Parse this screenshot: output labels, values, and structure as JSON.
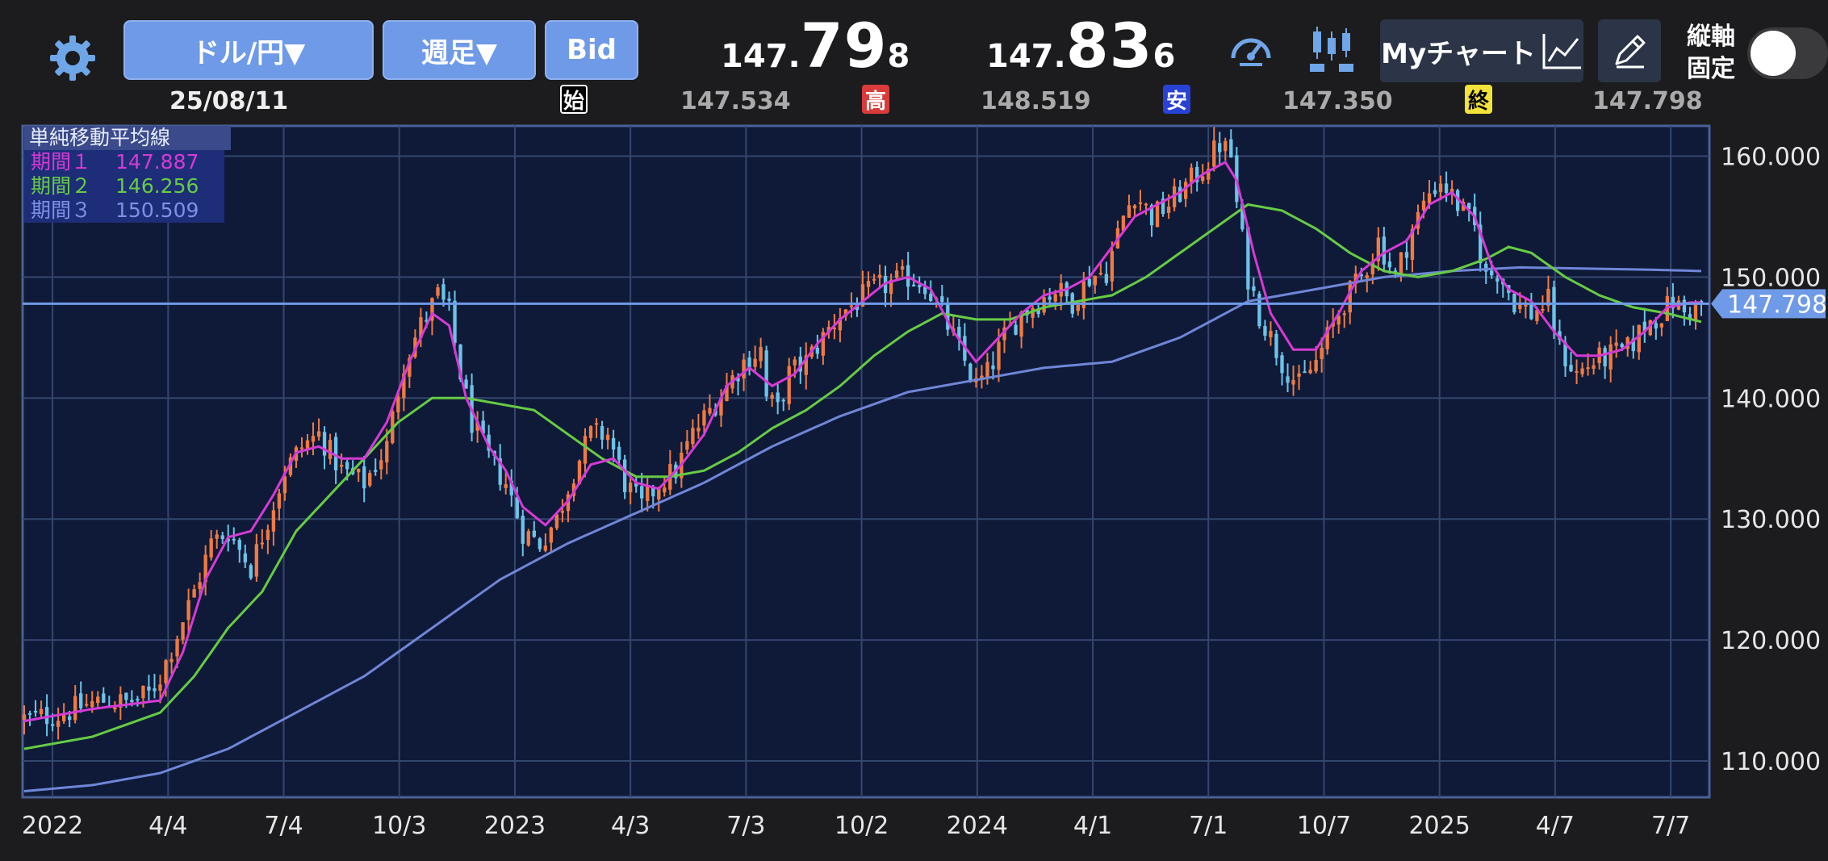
{
  "toolbar": {
    "pair": "ドル/円▼",
    "timeframe": "週足▼",
    "price_type": "Bid",
    "bid": {
      "small": "147.",
      "big": "79",
      "tail": "8"
    },
    "ask": {
      "small": "147.",
      "big": "83",
      "tail": "6"
    },
    "my_chart_label": "Myチャート",
    "lock_axis_label_1": "縦軸",
    "lock_axis_label_2": "固定"
  },
  "ohlc": {
    "date": "25/08/11",
    "open_tag": "始",
    "open": "147.534",
    "high_tag": "高",
    "high": "148.519",
    "low_tag": "安",
    "low": "147.350",
    "close_tag": "終",
    "close": "147.798"
  },
  "legend": {
    "title": "単純移動平均線",
    "p1_label": "期間１",
    "p1_value": "147.887",
    "p2_label": "期間２",
    "p2_value": "146.256",
    "p3_label": "期間３",
    "p3_value": "150.509"
  },
  "colors": {
    "bg": "#0f1a38",
    "grid": "#34466e",
    "up": "#f07a42",
    "down": "#6cc3e8",
    "ma1": "#d63ad6",
    "ma2": "#66cc44",
    "ma3": "#6f86d8",
    "accent": "#6f9ae8"
  },
  "chart_data": {
    "type": "candlestick",
    "y_axis_ticks": [
      "160.000",
      "150.000",
      "140.000",
      "130.000",
      "120.000",
      "110.000"
    ],
    "ylim": [
      107,
      162.5
    ],
    "x_axis_ticks": [
      "2022",
      "4/4",
      "7/4",
      "10/3",
      "2023",
      "4/3",
      "7/3",
      "10/2",
      "2024",
      "4/1",
      "7/1",
      "10/7",
      "2025",
      "4/7",
      "7/7"
    ],
    "current_price_label": "147.798",
    "current_price": 147.798,
    "series_keypoints": {
      "close_path": [
        [
          0,
          113.5
        ],
        [
          6,
          113.8
        ],
        [
          10,
          114.5
        ],
        [
          14,
          115.0
        ],
        [
          18,
          114.8
        ],
        [
          22,
          115.5
        ],
        [
          24,
          117
        ],
        [
          27,
          120.5
        ],
        [
          30,
          124
        ],
        [
          33,
          128
        ],
        [
          36,
          129
        ],
        [
          40,
          126
        ],
        [
          43,
          130
        ],
        [
          46,
          134
        ],
        [
          49,
          136
        ],
        [
          52,
          137
        ],
        [
          56,
          134
        ],
        [
          60,
          133
        ],
        [
          64,
          136
        ],
        [
          67,
          143
        ],
        [
          70,
          146
        ],
        [
          73,
          148.5
        ],
        [
          75,
          147
        ],
        [
          77,
          142
        ],
        [
          79,
          138
        ],
        [
          82,
          135
        ],
        [
          85,
          133
        ],
        [
          88,
          129
        ],
        [
          91,
          128
        ],
        [
          94,
          130
        ],
        [
          97,
          134
        ],
        [
          100,
          137
        ],
        [
          103,
          137
        ],
        [
          106,
          133
        ],
        [
          109,
          131
        ],
        [
          112,
          133
        ],
        [
          115,
          134
        ],
        [
          118,
          137
        ],
        [
          121,
          139
        ],
        [
          124,
          141
        ],
        [
          127,
          143
        ],
        [
          130,
          144
        ],
        [
          131,
          140
        ],
        [
          133,
          139
        ],
        [
          135,
          142
        ],
        [
          138,
          143
        ],
        [
          141,
          145
        ],
        [
          144,
          147
        ],
        [
          147,
          148
        ],
        [
          150,
          149
        ],
        [
          153,
          149.5
        ],
        [
          156,
          150
        ],
        [
          159,
          149.5
        ],
        [
          162,
          147
        ],
        [
          164,
          145
        ],
        [
          166,
          143
        ],
        [
          168,
          141
        ],
        [
          170,
          142
        ],
        [
          173,
          145
        ],
        [
          176,
          147
        ],
        [
          179,
          148
        ],
        [
          182,
          149
        ],
        [
          185,
          148
        ],
        [
          188,
          150
        ],
        [
          191,
          150.5
        ],
        [
          194,
          155
        ],
        [
          196,
          157
        ],
        [
          199,
          155
        ],
        [
          202,
          156
        ],
        [
          205,
          157.5
        ],
        [
          208,
          159
        ],
        [
          211,
          161
        ],
        [
          213,
          160
        ],
        [
          214,
          156
        ],
        [
          216,
          150
        ],
        [
          218,
          147
        ],
        [
          220,
          145
        ],
        [
          222,
          143
        ],
        [
          225,
          141
        ],
        [
          228,
          143
        ],
        [
          230,
          145
        ],
        [
          233,
          148
        ],
        [
          236,
          150
        ],
        [
          239,
          153
        ],
        [
          242,
          150
        ],
        [
          245,
          154
        ],
        [
          248,
          157
        ],
        [
          250,
          158
        ],
        [
          253,
          156
        ],
        [
          256,
          154
        ],
        [
          258,
          150
        ],
        [
          260,
          150.5
        ],
        [
          263,
          148
        ],
        [
          266,
          147
        ],
        [
          269,
          148
        ],
        [
          271,
          144
        ],
        [
          274,
          142
        ],
        [
          277,
          143
        ],
        [
          280,
          143.5
        ],
        [
          283,
          144
        ],
        [
          286,
          146
        ],
        [
          289,
          147
        ],
        [
          291,
          148
        ],
        [
          293,
          147
        ],
        [
          296,
          147.8
        ]
      ],
      "ma1_path": [
        [
          0,
          113.3
        ],
        [
          12,
          114.3
        ],
        [
          24,
          115.0
        ],
        [
          28,
          119
        ],
        [
          32,
          125
        ],
        [
          36,
          128.5
        ],
        [
          40,
          129
        ],
        [
          44,
          132
        ],
        [
          48,
          135.5
        ],
        [
          52,
          136
        ],
        [
          56,
          135
        ],
        [
          60,
          135
        ],
        [
          64,
          138
        ],
        [
          68,
          143
        ],
        [
          72,
          147
        ],
        [
          75,
          146
        ],
        [
          78,
          140
        ],
        [
          82,
          136
        ],
        [
          85,
          134
        ],
        [
          88,
          131
        ],
        [
          92,
          129.5
        ],
        [
          96,
          131.5
        ],
        [
          100,
          134.5
        ],
        [
          104,
          135
        ],
        [
          108,
          133
        ],
        [
          112,
          132.5
        ],
        [
          116,
          134.5
        ],
        [
          120,
          137
        ],
        [
          124,
          141
        ],
        [
          128,
          142.5
        ],
        [
          132,
          141
        ],
        [
          136,
          142
        ],
        [
          140,
          144.5
        ],
        [
          144,
          146.5
        ],
        [
          148,
          148
        ],
        [
          152,
          149.5
        ],
        [
          156,
          150
        ],
        [
          160,
          149
        ],
        [
          164,
          145.5
        ],
        [
          168,
          143
        ],
        [
          172,
          145
        ],
        [
          176,
          147
        ],
        [
          180,
          148.5
        ],
        [
          184,
          149
        ],
        [
          188,
          150
        ],
        [
          192,
          152.5
        ],
        [
          196,
          155
        ],
        [
          200,
          156
        ],
        [
          204,
          157
        ],
        [
          208,
          158.5
        ],
        [
          212,
          159.5
        ],
        [
          214,
          158
        ],
        [
          217,
          152
        ],
        [
          220,
          147
        ],
        [
          224,
          144
        ],
        [
          228,
          144
        ],
        [
          232,
          147
        ],
        [
          236,
          150.5
        ],
        [
          240,
          152
        ],
        [
          244,
          153
        ],
        [
          248,
          156
        ],
        [
          252,
          157
        ],
        [
          256,
          155
        ],
        [
          259,
          151
        ],
        [
          262,
          149
        ],
        [
          266,
          148
        ],
        [
          270,
          145.5
        ],
        [
          274,
          143.5
        ],
        [
          278,
          143.5
        ],
        [
          282,
          144
        ],
        [
          286,
          145.5
        ],
        [
          290,
          147.5
        ],
        [
          294,
          147.9
        ],
        [
          296,
          147.9
        ]
      ],
      "ma2_path": [
        [
          0,
          111
        ],
        [
          12,
          112
        ],
        [
          24,
          114
        ],
        [
          30,
          117
        ],
        [
          36,
          121
        ],
        [
          42,
          124
        ],
        [
          48,
          129
        ],
        [
          54,
          132
        ],
        [
          60,
          135
        ],
        [
          66,
          138
        ],
        [
          72,
          140
        ],
        [
          78,
          140
        ],
        [
          84,
          139.5
        ],
        [
          90,
          139
        ],
        [
          96,
          137
        ],
        [
          102,
          135
        ],
        [
          108,
          133.5
        ],
        [
          114,
          133.5
        ],
        [
          120,
          134
        ],
        [
          126,
          135.5
        ],
        [
          132,
          137.5
        ],
        [
          138,
          139
        ],
        [
          144,
          141
        ],
        [
          150,
          143.5
        ],
        [
          156,
          145.5
        ],
        [
          162,
          147
        ],
        [
          168,
          146.5
        ],
        [
          174,
          146.5
        ],
        [
          180,
          147.5
        ],
        [
          186,
          148
        ],
        [
          192,
          148.5
        ],
        [
          198,
          150
        ],
        [
          204,
          152
        ],
        [
          210,
          154
        ],
        [
          216,
          156
        ],
        [
          222,
          155.5
        ],
        [
          228,
          154
        ],
        [
          234,
          152
        ],
        [
          240,
          150.5
        ],
        [
          246,
          150
        ],
        [
          252,
          150.5
        ],
        [
          258,
          151.5
        ],
        [
          262,
          152.5
        ],
        [
          266,
          152
        ],
        [
          272,
          150
        ],
        [
          278,
          148.5
        ],
        [
          284,
          147.5
        ],
        [
          290,
          147
        ],
        [
          296,
          146.3
        ]
      ],
      "ma3_path": [
        [
          0,
          107.5
        ],
        [
          12,
          108
        ],
        [
          24,
          109
        ],
        [
          36,
          111
        ],
        [
          48,
          114
        ],
        [
          60,
          117
        ],
        [
          72,
          121
        ],
        [
          84,
          125
        ],
        [
          96,
          128
        ],
        [
          108,
          130.5
        ],
        [
          120,
          133
        ],
        [
          132,
          136
        ],
        [
          144,
          138.5
        ],
        [
          156,
          140.5
        ],
        [
          168,
          141.5
        ],
        [
          180,
          142.5
        ],
        [
          192,
          143
        ],
        [
          204,
          145
        ],
        [
          216,
          148
        ],
        [
          228,
          149
        ],
        [
          240,
          150
        ],
        [
          252,
          150.5
        ],
        [
          264,
          150.8
        ],
        [
          276,
          150.7
        ],
        [
          288,
          150.6
        ],
        [
          296,
          150.5
        ]
      ]
    }
  }
}
